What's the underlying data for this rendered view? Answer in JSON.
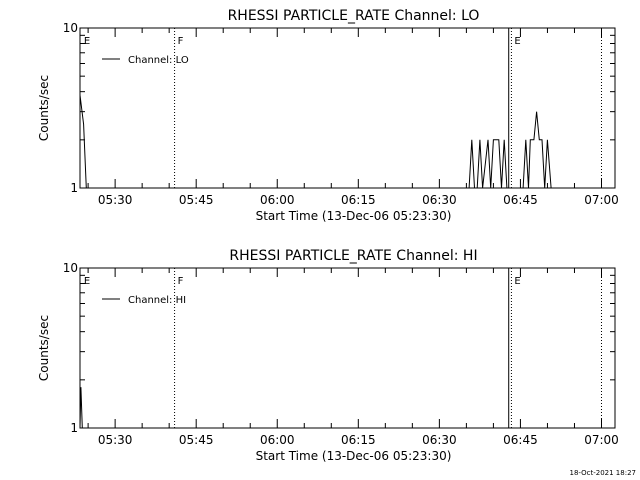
{
  "footer": {
    "date_stamp": "18-Oct-2021 18:27"
  },
  "chart_data": [
    {
      "type": "line",
      "title": "RHESSI PARTICLE_RATE Channel: LO",
      "xlabel": "Start Time (13-Dec-06 05:23:30)",
      "ylabel": "Counts/sec",
      "y_scale": "log",
      "ylim": [
        1,
        10
      ],
      "xlim": [
        "05:23:30",
        "07:02:30"
      ],
      "x_tick_labels": [
        "05:30",
        "05:45",
        "06:00",
        "06:15",
        "06:30",
        "06:45",
        "07:00"
      ],
      "y_tick_labels": [
        "1",
        "10"
      ],
      "legend": {
        "placement": "top-left",
        "entries": [
          "Channel: LO"
        ]
      },
      "grid": false,
      "markers": [
        {
          "label": "E",
          "time": "05:23:40",
          "style": "none"
        },
        {
          "label": "F",
          "time": "05:41:00",
          "style": "dotted"
        },
        {
          "label": "",
          "time": "06:42:50",
          "style": "solid"
        },
        {
          "label": "E",
          "time": "06:43:20",
          "style": "dotted"
        },
        {
          "label": "",
          "time": "07:00:00",
          "style": "dotted"
        }
      ],
      "series": [
        {
          "values": [
            [
              "05:23:30",
              3.8
            ],
            [
              "05:24:10",
              2.5
            ],
            [
              "05:24:40",
              1.0
            ],
            [
              "06:35:30",
              1.0
            ],
            [
              "06:36:00",
              2.0
            ],
            [
              "06:36:30",
              1.0
            ],
            [
              "06:37:00",
              1.0
            ],
            [
              "06:37:30",
              2.0
            ],
            [
              "06:38:00",
              1.0
            ],
            [
              "06:39:00",
              2.0
            ],
            [
              "06:39:30",
              1.0
            ],
            [
              "06:40:00",
              2.0
            ],
            [
              "06:41:00",
              2.0
            ],
            [
              "06:41:30",
              1.0
            ],
            [
              "06:42:00",
              2.0
            ],
            [
              "06:42:30",
              1.0
            ],
            [
              "06:43:30",
              1.0
            ],
            [
              "06:44:30",
              1.0
            ],
            [
              "06:45:30",
              1.0
            ],
            [
              "06:46:00",
              2.0
            ],
            [
              "06:46:30",
              1.0
            ],
            [
              "06:46:50",
              2.0
            ],
            [
              "06:47:30",
              2.0
            ],
            [
              "06:48:00",
              3.0
            ],
            [
              "06:48:30",
              2.0
            ],
            [
              "06:49:00",
              2.0
            ],
            [
              "06:49:30",
              1.0
            ],
            [
              "06:50:00",
              2.0
            ],
            [
              "06:50:40",
              1.0
            ],
            [
              "06:51:10",
              1.0
            ]
          ]
        }
      ]
    },
    {
      "type": "line",
      "title": "RHESSI PARTICLE_RATE Channel: HI",
      "xlabel": "Start Time (13-Dec-06 05:23:30)",
      "ylabel": "Counts/sec",
      "y_scale": "log",
      "ylim": [
        1,
        10
      ],
      "xlim": [
        "05:23:30",
        "07:02:30"
      ],
      "x_tick_labels": [
        "05:30",
        "05:45",
        "06:00",
        "06:15",
        "06:30",
        "06:45",
        "07:00"
      ],
      "y_tick_labels": [
        "1",
        "10"
      ],
      "legend": {
        "placement": "top-left",
        "entries": [
          "Channel: HI"
        ]
      },
      "grid": false,
      "markers": [
        {
          "label": "E",
          "time": "05:23:40",
          "style": "none"
        },
        {
          "label": "F",
          "time": "05:41:00",
          "style": "dotted"
        },
        {
          "label": "",
          "time": "06:42:50",
          "style": "solid"
        },
        {
          "label": "E",
          "time": "06:43:20",
          "style": "dotted"
        },
        {
          "label": "",
          "time": "07:00:00",
          "style": "dotted"
        }
      ],
      "series": [
        {
          "values": [
            [
              "05:23:30",
              1.0
            ],
            [
              "05:23:40",
              1.8
            ],
            [
              "05:23:55",
              1.0
            ]
          ]
        }
      ]
    }
  ]
}
